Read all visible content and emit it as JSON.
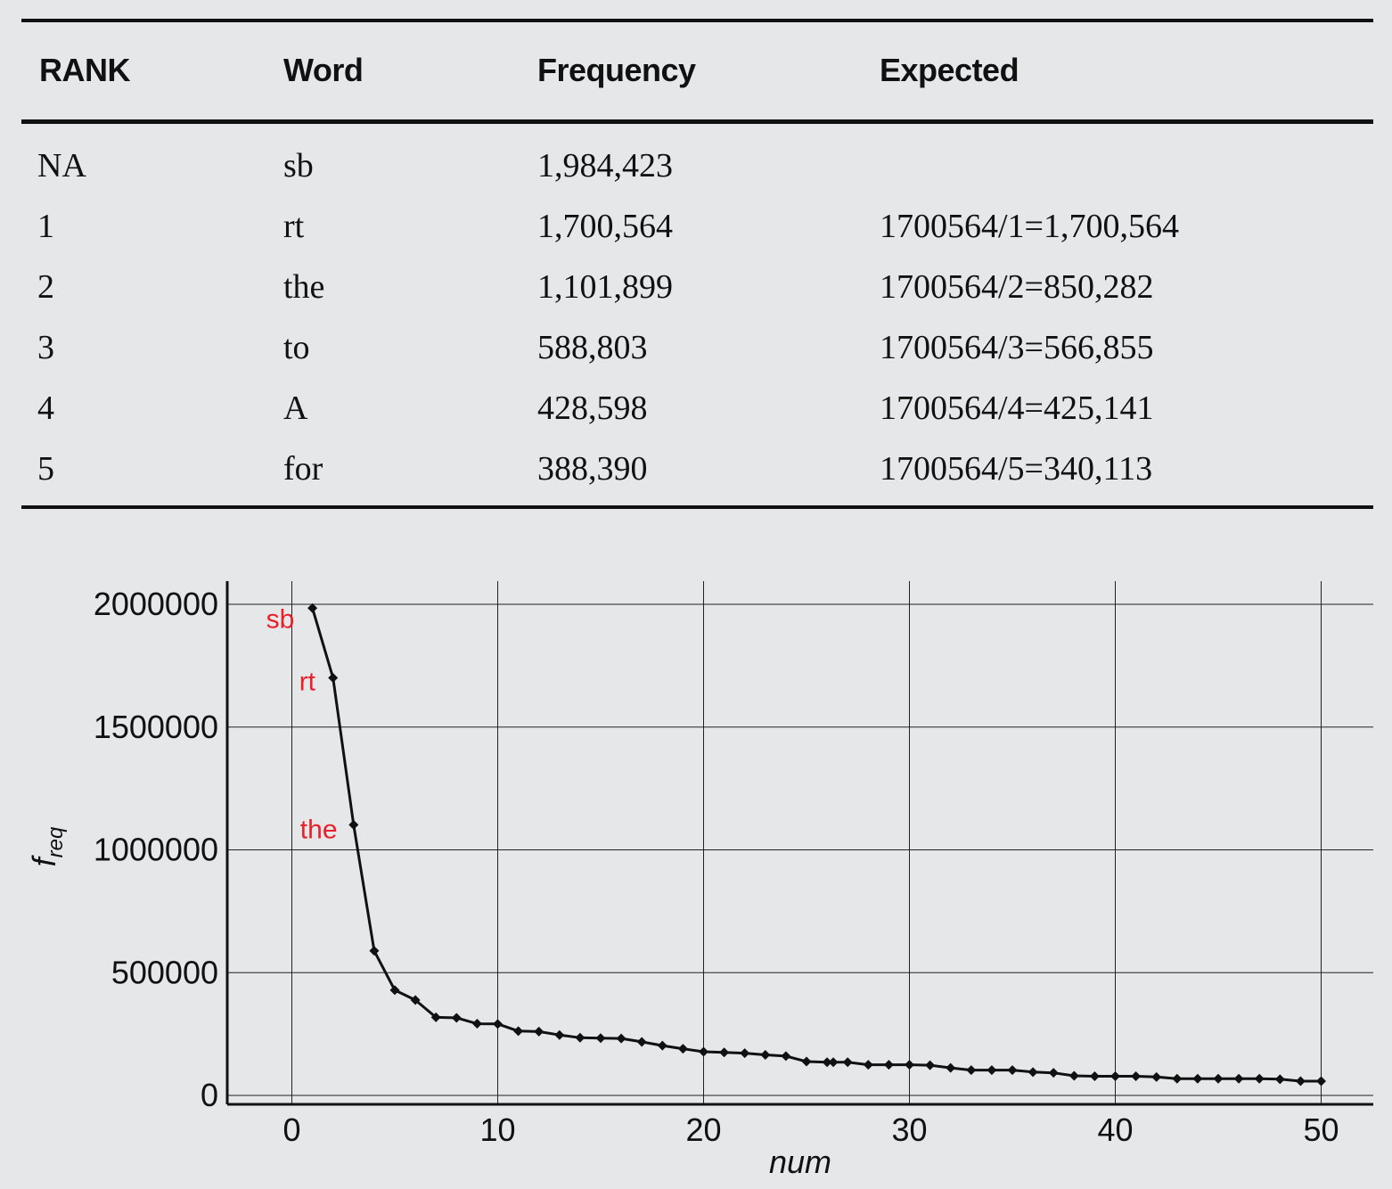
{
  "table": {
    "headers": [
      "RANK",
      "Word",
      "Frequency",
      "Expected"
    ],
    "rows": [
      [
        "NA",
        "sb",
        "1,984,423",
        ""
      ],
      [
        "1",
        "rt",
        "1,700,564",
        "1700564/1=1,700,564"
      ],
      [
        "2",
        "the",
        "1,101,899",
        "1700564/2=850,282"
      ],
      [
        "3",
        "to",
        "588,803",
        "1700564/3=566,855"
      ],
      [
        "4",
        "A",
        "428,598",
        "1700564/4=425,141"
      ],
      [
        "5",
        "for",
        "388,390",
        "1700564/5=340,113"
      ]
    ]
  },
  "chart_data": {
    "type": "line",
    "title": "",
    "xlabel": "num",
    "ylabel_main": "f",
    "ylabel_sub": "req",
    "xlim": [
      -3,
      52
    ],
    "ylim": [
      -50000,
      2100000
    ],
    "xticks": [
      0,
      10,
      20,
      30,
      40,
      50
    ],
    "yticks": [
      0,
      500000,
      1000000,
      1500000,
      2000000
    ],
    "grid": true,
    "series": [
      {
        "x": [
          1,
          2,
          3,
          4,
          5,
          6,
          7,
          8,
          9,
          10,
          11,
          12,
          13,
          14,
          15,
          16,
          17,
          18,
          19,
          20,
          21,
          22,
          23,
          24,
          25,
          26,
          26.3,
          27,
          28,
          29,
          30,
          31,
          32,
          33,
          34,
          35,
          36,
          37,
          38,
          39,
          40,
          41,
          42,
          43,
          44,
          45,
          46,
          47,
          48,
          49,
          50
        ],
        "y": [
          1984423,
          1700564,
          1101899,
          588803,
          428598,
          388390,
          318000,
          316000,
          292000,
          291000,
          262000,
          260000,
          246000,
          235000,
          233000,
          232000,
          218000,
          203000,
          190000,
          178000,
          175000,
          172000,
          165000,
          160000,
          138000,
          135000,
          135000,
          135000,
          125000,
          125000,
          125000,
          123000,
          112000,
          103000,
          103000,
          103000,
          95000,
          92000,
          80000,
          78000,
          78000,
          78000,
          75000,
          68000,
          68000,
          68000,
          68000,
          68000,
          66000,
          58000,
          58000
        ]
      }
    ],
    "annotations": [
      {
        "text": "sb",
        "x": 1,
        "y": 1984423
      },
      {
        "text": "rt",
        "x": 2,
        "y": 1700564
      },
      {
        "text": "the",
        "x": 3,
        "y": 1101899
      }
    ],
    "annotation_color": "#e8202a"
  }
}
